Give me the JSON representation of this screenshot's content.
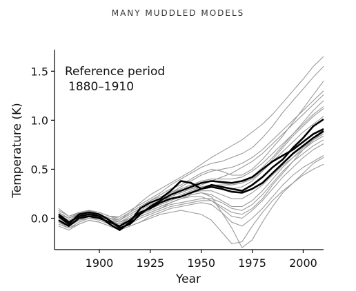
{
  "page": {
    "title": "MANY MUDDLED MODELS"
  },
  "chart_data": {
    "type": "line",
    "title": "",
    "xlabel": "Year",
    "ylabel": "Temperature (K)",
    "xlim": [
      1878,
      2010
    ],
    "ylim": [
      -0.32,
      1.72
    ],
    "xticks": [
      1900,
      1925,
      1950,
      1975,
      2000
    ],
    "yticks": [
      0.0,
      0.5,
      1.0,
      1.5
    ],
    "xtick_labels": [
      "1900",
      "1925",
      "1950",
      "1975",
      "2000"
    ],
    "ytick_labels": [
      "0.0",
      "0.5",
      "1.0",
      "1.5"
    ],
    "grid": false,
    "annotation": [
      "Reference period",
      "1880–1910"
    ],
    "x": [
      1880,
      1885,
      1890,
      1895,
      1900,
      1905,
      1910,
      1915,
      1920,
      1925,
      1930,
      1935,
      1940,
      1945,
      1950,
      1955,
      1960,
      1965,
      1970,
      1975,
      1980,
      1985,
      1990,
      1995,
      2000,
      2005,
      2010
    ],
    "series": [
      {
        "style": "highlight",
        "values": [
          0.04,
          -0.04,
          0.02,
          0.04,
          0.02,
          -0.06,
          -0.12,
          -0.04,
          0.1,
          0.16,
          0.2,
          0.28,
          0.38,
          0.36,
          0.3,
          0.34,
          0.32,
          0.3,
          0.28,
          0.34,
          0.42,
          0.52,
          0.6,
          0.72,
          0.82,
          0.94,
          1.01
        ]
      },
      {
        "style": "highlight",
        "values": [
          0.02,
          -0.06,
          0.04,
          0.06,
          0.04,
          -0.02,
          -0.1,
          -0.06,
          0.04,
          0.12,
          0.18,
          0.24,
          0.28,
          0.32,
          0.36,
          0.38,
          0.37,
          0.36,
          0.38,
          0.42,
          0.5,
          0.58,
          0.64,
          0.7,
          0.78,
          0.86,
          0.91
        ]
      },
      {
        "style": "highlight",
        "values": [
          -0.02,
          -0.08,
          0.0,
          0.02,
          0.0,
          -0.04,
          -0.08,
          -0.02,
          0.06,
          0.1,
          0.16,
          0.2,
          0.22,
          0.26,
          0.3,
          0.32,
          0.3,
          0.27,
          0.26,
          0.3,
          0.36,
          0.46,
          0.56,
          0.66,
          0.74,
          0.82,
          0.89
        ]
      },
      {
        "style": "background",
        "values": [
          0.1,
          0.02,
          0.06,
          0.08,
          0.04,
          0.0,
          -0.02,
          0.06,
          0.16,
          0.24,
          0.3,
          0.36,
          0.42,
          0.48,
          0.55,
          0.62,
          0.68,
          0.74,
          0.8,
          0.88,
          0.96,
          1.06,
          1.18,
          1.3,
          1.42,
          1.55,
          1.65
        ]
      },
      {
        "style": "background",
        "values": [
          0.06,
          0.0,
          0.05,
          0.07,
          0.06,
          0.02,
          0.02,
          0.08,
          0.14,
          0.2,
          0.26,
          0.34,
          0.4,
          0.46,
          0.52,
          0.56,
          0.58,
          0.62,
          0.66,
          0.72,
          0.82,
          0.94,
          1.08,
          1.2,
          1.32,
          1.44,
          1.55
        ]
      },
      {
        "style": "background",
        "values": [
          -0.04,
          -0.1,
          -0.06,
          -0.02,
          -0.04,
          -0.08,
          -0.12,
          -0.08,
          -0.04,
          0.0,
          0.04,
          0.06,
          0.08,
          0.06,
          0.04,
          -0.02,
          -0.14,
          -0.26,
          -0.24,
          -0.08,
          0.06,
          0.18,
          0.28,
          0.36,
          0.44,
          0.5,
          0.55
        ]
      },
      {
        "style": "background",
        "values": [
          0.0,
          -0.06,
          -0.02,
          0.02,
          0.0,
          -0.04,
          -0.08,
          -0.04,
          0.02,
          0.06,
          0.1,
          0.16,
          0.2,
          0.24,
          0.26,
          0.22,
          0.06,
          -0.1,
          -0.3,
          -0.22,
          -0.04,
          0.12,
          0.26,
          0.36,
          0.46,
          0.56,
          0.62
        ]
      },
      {
        "style": "background",
        "values": [
          0.02,
          -0.04,
          0.02,
          0.06,
          0.04,
          0.0,
          -0.04,
          0.02,
          0.08,
          0.14,
          0.18,
          0.22,
          0.26,
          0.3,
          0.34,
          0.38,
          0.42,
          0.46,
          0.52,
          0.58,
          0.66,
          0.76,
          0.86,
          0.96,
          1.06,
          1.16,
          1.26
        ]
      },
      {
        "style": "background",
        "values": [
          -0.06,
          -0.1,
          -0.04,
          0.0,
          -0.02,
          -0.06,
          -0.1,
          -0.06,
          0.0,
          0.04,
          0.08,
          0.12,
          0.14,
          0.16,
          0.18,
          0.18,
          0.12,
          0.06,
          0.04,
          0.1,
          0.2,
          0.34,
          0.46,
          0.58,
          0.7,
          0.8,
          0.88
        ]
      },
      {
        "style": "background",
        "values": [
          0.08,
          0.02,
          0.06,
          0.06,
          0.04,
          0.0,
          -0.02,
          0.04,
          0.1,
          0.18,
          0.24,
          0.3,
          0.34,
          0.4,
          0.46,
          0.5,
          0.48,
          0.44,
          0.44,
          0.5,
          0.6,
          0.72,
          0.84,
          0.98,
          1.12,
          1.26,
          1.4
        ]
      },
      {
        "style": "background",
        "values": [
          -0.02,
          -0.08,
          -0.02,
          0.02,
          0.02,
          -0.02,
          -0.06,
          -0.02,
          0.04,
          0.08,
          0.12,
          0.16,
          0.2,
          0.22,
          0.22,
          0.18,
          0.1,
          0.02,
          0.0,
          0.08,
          0.18,
          0.3,
          0.42,
          0.52,
          0.62,
          0.7,
          0.76
        ]
      },
      {
        "style": "background",
        "values": [
          0.04,
          -0.02,
          0.04,
          0.06,
          0.02,
          -0.02,
          -0.06,
          0.0,
          0.06,
          0.12,
          0.16,
          0.22,
          0.26,
          0.3,
          0.32,
          0.34,
          0.32,
          0.3,
          0.32,
          0.38,
          0.48,
          0.6,
          0.72,
          0.84,
          0.94,
          1.04,
          1.12
        ]
      },
      {
        "style": "background",
        "values": [
          -0.08,
          -0.12,
          -0.06,
          -0.02,
          -0.04,
          -0.08,
          -0.12,
          -0.08,
          -0.04,
          0.02,
          0.06,
          0.1,
          0.12,
          0.14,
          0.16,
          0.14,
          0.06,
          -0.04,
          -0.08,
          0.0,
          0.1,
          0.22,
          0.34,
          0.44,
          0.52,
          0.58,
          0.64
        ]
      },
      {
        "style": "background",
        "values": [
          0.06,
          0.0,
          0.04,
          0.08,
          0.06,
          0.02,
          0.0,
          0.06,
          0.12,
          0.18,
          0.22,
          0.26,
          0.3,
          0.34,
          0.38,
          0.4,
          0.4,
          0.4,
          0.42,
          0.48,
          0.56,
          0.66,
          0.76,
          0.86,
          0.96,
          1.06,
          1.14
        ]
      },
      {
        "style": "background",
        "values": [
          0.0,
          -0.04,
          0.0,
          0.04,
          0.02,
          -0.02,
          -0.04,
          0.0,
          0.04,
          0.1,
          0.14,
          0.18,
          0.22,
          0.26,
          0.28,
          0.28,
          0.24,
          0.2,
          0.2,
          0.26,
          0.34,
          0.44,
          0.54,
          0.62,
          0.7,
          0.78,
          0.84
        ]
      },
      {
        "style": "background",
        "values": [
          0.02,
          -0.06,
          0.0,
          0.04,
          0.04,
          0.0,
          -0.04,
          0.0,
          0.06,
          0.12,
          0.18,
          0.24,
          0.3,
          0.34,
          0.36,
          0.38,
          0.36,
          0.34,
          0.36,
          0.42,
          0.52,
          0.62,
          0.74,
          0.86,
          0.98,
          1.1,
          1.2
        ]
      },
      {
        "style": "background",
        "values": [
          -0.04,
          -0.08,
          -0.02,
          0.0,
          0.0,
          -0.04,
          -0.08,
          -0.04,
          0.02,
          0.06,
          0.1,
          0.14,
          0.16,
          0.18,
          0.2,
          0.2,
          0.16,
          0.1,
          0.08,
          0.14,
          0.24,
          0.36,
          0.48,
          0.58,
          0.66,
          0.74,
          0.8
        ]
      },
      {
        "style": "background",
        "values": [
          0.04,
          0.0,
          0.06,
          0.08,
          0.06,
          0.02,
          -0.02,
          0.04,
          0.1,
          0.16,
          0.2,
          0.26,
          0.32,
          0.38,
          0.44,
          0.48,
          0.5,
          0.52,
          0.56,
          0.62,
          0.7,
          0.8,
          0.9,
          1.0,
          1.1,
          1.2,
          1.3
        ]
      },
      {
        "style": "background",
        "values": [
          -0.02,
          -0.06,
          0.0,
          0.02,
          0.0,
          -0.04,
          -0.06,
          -0.02,
          0.04,
          0.08,
          0.12,
          0.16,
          0.2,
          0.24,
          0.26,
          0.24,
          0.18,
          0.12,
          0.12,
          0.18,
          0.28,
          0.4,
          0.52,
          0.62,
          0.72,
          0.8,
          0.86
        ]
      },
      {
        "style": "background",
        "values": [
          0.02,
          -0.04,
          0.02,
          0.04,
          0.02,
          -0.02,
          -0.06,
          -0.02,
          0.04,
          0.1,
          0.14,
          0.18,
          0.24,
          0.28,
          0.32,
          0.34,
          0.34,
          0.34,
          0.36,
          0.4,
          0.48,
          0.58,
          0.68,
          0.78,
          0.88,
          0.96,
          1.04
        ]
      }
    ]
  }
}
